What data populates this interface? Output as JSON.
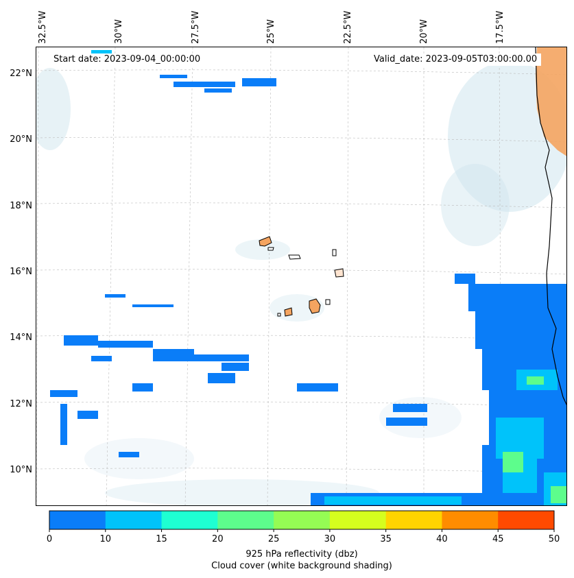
{
  "map": {
    "start_label": "Start date: 2023-09-04_00:00:00",
    "valid_label": "Valid_date: 2023-09-05T03:00:00.00",
    "lon_ticks": [
      "32.5°W",
      "30°W",
      "27.5°W",
      "25°W",
      "22.5°W",
      "20°W",
      "17.5°W"
    ],
    "lat_ticks": [
      "22°N",
      "20°N",
      "18°N",
      "16°N",
      "14°N",
      "12°N",
      "10°N"
    ]
  },
  "colorbar": {
    "ticks": [
      "0",
      "10",
      "15",
      "20",
      "25",
      "30",
      "35",
      "40",
      "45",
      "50"
    ],
    "colors": [
      "#0a7df8",
      "#00c3fa",
      "#1effd2",
      "#5dfd8c",
      "#95fc54",
      "#d5fe1e",
      "#ffd400",
      "#ff8c00",
      "#ff4a00"
    ],
    "title_line1": "925 hPa reflectivity (dbz)",
    "title_line2": "Cloud cover (white background shading)"
  },
  "palette": {
    "refl_low": "#0a7df8",
    "refl_mid": "#00c3fa",
    "refl_green": "#5dfd8c",
    "land_orange": "#f4a460",
    "cloud_shade": "#cfe5ee"
  }
}
